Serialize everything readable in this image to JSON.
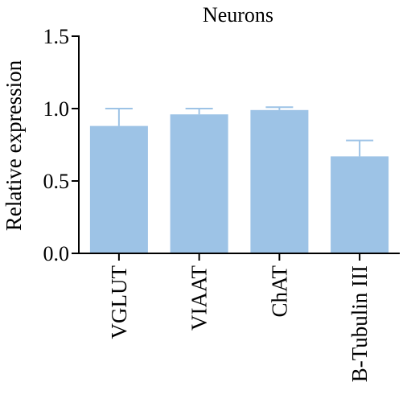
{
  "chart_data": {
    "type": "bar",
    "title": "Neurons",
    "xlabel": "",
    "ylabel": "Relative expression",
    "ylim": [
      0,
      1.5
    ],
    "yticks": [
      0.0,
      0.5,
      1.0,
      1.5
    ],
    "ytick_labels": [
      "0.0",
      "0.5",
      "1.0",
      "1.5"
    ],
    "categories": [
      "VGLUT",
      "VIAAT",
      "ChAT",
      "B-Tubulin III"
    ],
    "values": [
      0.88,
      0.96,
      0.99,
      0.67
    ],
    "error_upper": [
      0.12,
      0.04,
      0.02,
      0.11
    ],
    "bar_color": "#9dc3e6",
    "error_bar_color": "#9dc3e6",
    "axis_color": "#000000",
    "grid": false,
    "legend": "none"
  }
}
